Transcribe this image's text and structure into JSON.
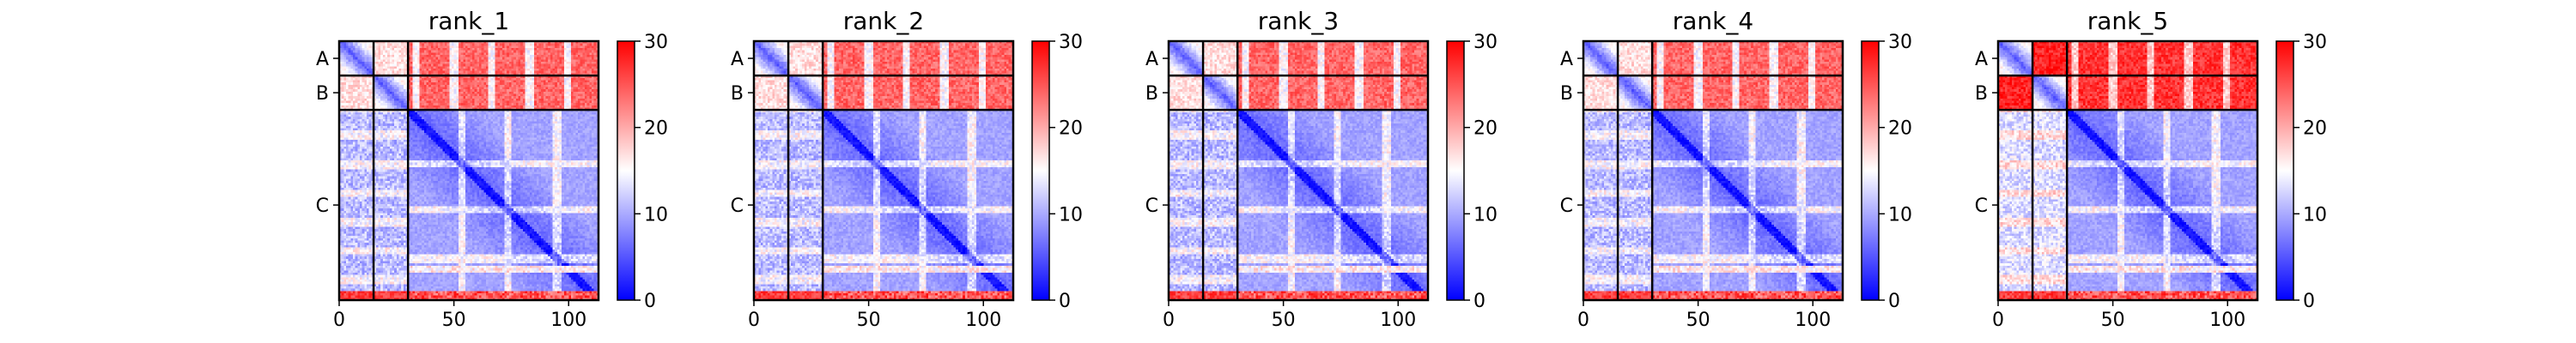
{
  "chart_data": {
    "type": "heatmap",
    "description_kind": "predicted aligned error panels",
    "colormap": {
      "low": "#0000ff",
      "mid": "#ffffff",
      "high": "#ff0000"
    },
    "color_range": [
      0,
      30
    ],
    "colorbar_ticks": [
      "0",
      "10",
      "20",
      "30"
    ],
    "x_range": [
      0,
      113
    ],
    "x_ticks": [
      "0",
      "50",
      "100"
    ],
    "chains": [
      {
        "id": "A",
        "start": 0,
        "end": 15
      },
      {
        "id": "B",
        "start": 15,
        "end": 30
      },
      {
        "id": "C",
        "start": 30,
        "end": 113
      }
    ],
    "panels": [
      {
        "title": "rank_1",
        "intra_ab": 4,
        "cross_ab": 17,
        "ab_to_c": 24,
        "c_to_ab": 11,
        "cc": 6
      },
      {
        "title": "rank_2",
        "intra_ab": 4,
        "cross_ab": 17,
        "ab_to_c": 24,
        "c_to_ab": 11,
        "cc": 6
      },
      {
        "title": "rank_3",
        "intra_ab": 4,
        "cross_ab": 17,
        "ab_to_c": 24,
        "c_to_ab": 11,
        "cc": 6
      },
      {
        "title": "rank_4",
        "intra_ab": 4,
        "cross_ab": 17,
        "ab_to_c": 24,
        "c_to_ab": 11,
        "cc": 6
      },
      {
        "title": "rank_5",
        "intra_ab": 4,
        "cross_ab": 28,
        "ab_to_c": 27,
        "c_to_ab": 13,
        "cc": 6
      }
    ]
  }
}
